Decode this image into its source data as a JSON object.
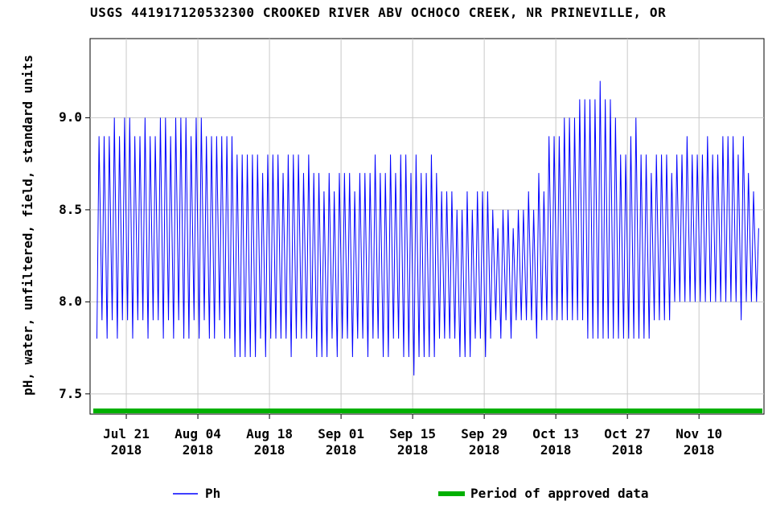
{
  "chart_data": {
    "type": "line",
    "title": "USGS 441917120532300 CROOKED RIVER ABV OCHOCO CREEK, NR PRINEVILLE, OR",
    "y_label": "pH, water, unfiltered, field, standard units",
    "xlim": [
      "2018-07-13T22:00",
      "2018-11-22T17:00"
    ],
    "ylim": [
      7.39,
      9.43
    ],
    "yticks": [
      {
        "value": 7.5,
        "label": "7.5"
      },
      {
        "value": 8,
        "label": "8.0"
      },
      {
        "value": 8.5,
        "label": "8.5"
      },
      {
        "value": 9,
        "label": "9.0"
      }
    ],
    "xticks": [
      {
        "value": "2018-07-21T00:00",
        "label": "Jul 21 2018"
      },
      {
        "value": "2018-08-04T00:00",
        "label": "Aug 04 2018"
      },
      {
        "value": "2018-08-18T00:00",
        "label": "Aug 18 2018"
      },
      {
        "value": "2018-09-01T00:00",
        "label": "Sep 01 2018"
      },
      {
        "value": "2018-09-15T00:00",
        "label": "Sep 15 2018"
      },
      {
        "value": "2018-09-29T00:00",
        "label": "Sep 29 2018"
      },
      {
        "value": "2018-10-13T00:00",
        "label": "Oct 13 2018"
      },
      {
        "value": "2018-10-27T00:00",
        "label": "Oct 27 2018"
      },
      {
        "value": "2018-11-10T00:00",
        "label": "Nov 10 2018"
      }
    ],
    "grid": true,
    "approved": {
      "name": "Period of approved data",
      "color": "#00b000"
    },
    "x": [
      "2018-07-15T06:00",
      "2018-07-15T16:00",
      "2018-07-16T06:00",
      "2018-07-16T16:00",
      "2018-07-17T06:00",
      "2018-07-17T16:00",
      "2018-07-18T06:00",
      "2018-07-18T16:00",
      "2018-07-19T06:00",
      "2018-07-19T16:00",
      "2018-07-20T06:00",
      "2018-07-20T16:00",
      "2018-07-21T06:00",
      "2018-07-21T16:00",
      "2018-07-22T06:00",
      "2018-07-22T16:00",
      "2018-07-23T06:00",
      "2018-07-23T16:00",
      "2018-07-24T06:00",
      "2018-07-24T16:00",
      "2018-07-25T06:00",
      "2018-07-25T16:00",
      "2018-07-26T06:00",
      "2018-07-26T16:00",
      "2018-07-27T06:00",
      "2018-07-27T16:00",
      "2018-07-28T06:00",
      "2018-07-28T16:00",
      "2018-07-29T06:00",
      "2018-07-29T16:00",
      "2018-07-30T06:00",
      "2018-07-30T16:00",
      "2018-07-31T06:00",
      "2018-07-31T16:00",
      "2018-08-01T06:00",
      "2018-08-01T16:00",
      "2018-08-02T06:00",
      "2018-08-02T16:00",
      "2018-08-03T06:00",
      "2018-08-03T16:00",
      "2018-08-04T06:00",
      "2018-08-04T16:00",
      "2018-08-05T06:00",
      "2018-08-05T16:00",
      "2018-08-06T06:00",
      "2018-08-06T16:00",
      "2018-08-07T06:00",
      "2018-08-07T16:00",
      "2018-08-08T06:00",
      "2018-08-08T16:00",
      "2018-08-09T06:00",
      "2018-08-09T16:00",
      "2018-08-10T06:00",
      "2018-08-10T16:00",
      "2018-08-11T06:00",
      "2018-08-11T16:00",
      "2018-08-12T06:00",
      "2018-08-12T16:00",
      "2018-08-13T06:00",
      "2018-08-13T16:00",
      "2018-08-14T06:00",
      "2018-08-14T16:00",
      "2018-08-15T06:00",
      "2018-08-15T16:00",
      "2018-08-16T06:00",
      "2018-08-16T16:00",
      "2018-08-17T06:00",
      "2018-08-17T16:00",
      "2018-08-18T06:00",
      "2018-08-18T16:00",
      "2018-08-19T06:00",
      "2018-08-19T16:00",
      "2018-08-20T06:00",
      "2018-08-20T16:00",
      "2018-08-21T06:00",
      "2018-08-21T16:00",
      "2018-08-22T06:00",
      "2018-08-22T16:00",
      "2018-08-23T06:00",
      "2018-08-23T16:00",
      "2018-08-24T06:00",
      "2018-08-24T16:00",
      "2018-08-25T06:00",
      "2018-08-25T16:00",
      "2018-08-26T06:00",
      "2018-08-26T16:00",
      "2018-08-27T06:00",
      "2018-08-27T16:00",
      "2018-08-28T06:00",
      "2018-08-28T16:00",
      "2018-08-29T06:00",
      "2018-08-29T16:00",
      "2018-08-30T06:00",
      "2018-08-30T16:00",
      "2018-08-31T06:00",
      "2018-08-31T16:00",
      "2018-09-01T06:00",
      "2018-09-01T16:00",
      "2018-09-02T06:00",
      "2018-09-02T16:00",
      "2018-09-03T06:00",
      "2018-09-03T16:00",
      "2018-09-04T06:00",
      "2018-09-04T16:00",
      "2018-09-05T06:00",
      "2018-09-05T16:00",
      "2018-09-06T06:00",
      "2018-09-06T16:00",
      "2018-09-07T06:00",
      "2018-09-07T16:00",
      "2018-09-08T06:00",
      "2018-09-08T16:00",
      "2018-09-09T06:00",
      "2018-09-09T16:00",
      "2018-09-10T06:00",
      "2018-09-10T16:00",
      "2018-09-11T06:00",
      "2018-09-11T16:00",
      "2018-09-12T06:00",
      "2018-09-12T16:00",
      "2018-09-13T06:00",
      "2018-09-13T16:00",
      "2018-09-14T06:00",
      "2018-09-14T16:00",
      "2018-09-15T06:00",
      "2018-09-15T16:00",
      "2018-09-16T06:00",
      "2018-09-16T16:00",
      "2018-09-17T06:00",
      "2018-09-17T16:00",
      "2018-09-18T06:00",
      "2018-09-18T16:00",
      "2018-09-19T06:00",
      "2018-09-19T16:00",
      "2018-09-20T06:00",
      "2018-09-20T16:00",
      "2018-09-21T06:00",
      "2018-09-21T16:00",
      "2018-09-22T06:00",
      "2018-09-22T16:00",
      "2018-09-23T06:00",
      "2018-09-23T16:00",
      "2018-09-24T06:00",
      "2018-09-24T16:00",
      "2018-09-25T06:00",
      "2018-09-25T16:00",
      "2018-09-26T06:00",
      "2018-09-26T16:00",
      "2018-09-27T06:00",
      "2018-09-27T16:00",
      "2018-09-28T06:00",
      "2018-09-28T16:00",
      "2018-09-29T06:00",
      "2018-09-29T16:00",
      "2018-09-30T06:00",
      "2018-09-30T16:00",
      "2018-10-01T06:00",
      "2018-10-01T16:00",
      "2018-10-02T06:00",
      "2018-10-02T16:00",
      "2018-10-03T06:00",
      "2018-10-03T16:00",
      "2018-10-04T06:00",
      "2018-10-04T16:00",
      "2018-10-05T06:00",
      "2018-10-05T16:00",
      "2018-10-06T06:00",
      "2018-10-06T16:00",
      "2018-10-07T06:00",
      "2018-10-07T16:00",
      "2018-10-08T06:00",
      "2018-10-08T16:00",
      "2018-10-09T06:00",
      "2018-10-09T16:00",
      "2018-10-10T06:00",
      "2018-10-10T16:00",
      "2018-10-11T06:00",
      "2018-10-11T16:00",
      "2018-10-12T06:00",
      "2018-10-12T16:00",
      "2018-10-13T06:00",
      "2018-10-13T16:00",
      "2018-10-14T06:00",
      "2018-10-14T16:00",
      "2018-10-15T06:00",
      "2018-10-15T16:00",
      "2018-10-16T06:00",
      "2018-10-16T16:00",
      "2018-10-17T06:00",
      "2018-10-17T16:00",
      "2018-10-18T06:00",
      "2018-10-18T16:00",
      "2018-10-19T06:00",
      "2018-10-19T16:00",
      "2018-10-20T06:00",
      "2018-10-20T16:00",
      "2018-10-21T06:00",
      "2018-10-21T16:00",
      "2018-10-22T06:00",
      "2018-10-22T16:00",
      "2018-10-23T06:00",
      "2018-10-23T16:00",
      "2018-10-24T06:00",
      "2018-10-24T16:00",
      "2018-10-25T06:00",
      "2018-10-25T16:00",
      "2018-10-26T06:00",
      "2018-10-26T16:00",
      "2018-10-27T06:00",
      "2018-10-27T16:00",
      "2018-10-28T06:00",
      "2018-10-28T16:00",
      "2018-10-29T06:00",
      "2018-10-29T16:00",
      "2018-10-30T06:00",
      "2018-10-30T16:00",
      "2018-10-31T06:00",
      "2018-10-31T16:00",
      "2018-11-01T06:00",
      "2018-11-01T16:00",
      "2018-11-02T06:00",
      "2018-11-02T16:00",
      "2018-11-03T06:00",
      "2018-11-03T16:00",
      "2018-11-04T06:00",
      "2018-11-04T16:00",
      "2018-11-05T06:00",
      "2018-11-05T16:00",
      "2018-11-06T06:00",
      "2018-11-06T16:00",
      "2018-11-07T06:00",
      "2018-11-07T16:00",
      "2018-11-08T06:00",
      "2018-11-08T16:00",
      "2018-11-09T06:00",
      "2018-11-09T16:00",
      "2018-11-10T06:00",
      "2018-11-10T16:00",
      "2018-11-11T06:00",
      "2018-11-11T16:00",
      "2018-11-12T06:00",
      "2018-11-12T16:00",
      "2018-11-13T06:00",
      "2018-11-13T16:00",
      "2018-11-14T06:00",
      "2018-11-14T16:00",
      "2018-11-15T06:00",
      "2018-11-15T16:00",
      "2018-11-16T06:00",
      "2018-11-16T16:00",
      "2018-11-17T06:00",
      "2018-11-17T16:00",
      "2018-11-18T06:00",
      "2018-11-18T16:00",
      "2018-11-19T06:00",
      "2018-11-19T16:00",
      "2018-11-20T06:00",
      "2018-11-20T16:00",
      "2018-11-21T06:00",
      "2018-11-21T16:00"
    ],
    "series": [
      {
        "name": "Ph",
        "color": "#0000ff",
        "values": [
          7.8,
          8.9,
          7.9,
          8.9,
          7.8,
          8.9,
          7.9,
          9.0,
          7.8,
          8.9,
          7.9,
          9.0,
          7.9,
          9.0,
          7.8,
          8.9,
          7.9,
          8.9,
          7.9,
          9.0,
          7.8,
          8.9,
          7.9,
          8.9,
          7.9,
          9.0,
          7.8,
          9.0,
          7.9,
          8.9,
          7.8,
          9.0,
          7.9,
          9.0,
          7.8,
          9.0,
          7.8,
          8.9,
          7.9,
          9.0,
          7.8,
          9.0,
          7.9,
          8.9,
          7.8,
          8.9,
          7.8,
          8.9,
          7.9,
          8.9,
          7.8,
          8.9,
          7.8,
          8.9,
          7.7,
          8.8,
          7.7,
          8.8,
          7.7,
          8.8,
          7.7,
          8.8,
          7.7,
          8.8,
          7.8,
          8.7,
          7.7,
          8.8,
          7.8,
          8.8,
          7.8,
          8.8,
          7.8,
          8.7,
          7.8,
          8.8,
          7.7,
          8.8,
          7.8,
          8.8,
          7.8,
          8.7,
          7.8,
          8.8,
          7.8,
          8.7,
          7.7,
          8.7,
          7.7,
          8.6,
          7.7,
          8.7,
          7.8,
          8.6,
          7.7,
          8.7,
          7.8,
          8.7,
          7.8,
          8.7,
          7.7,
          8.6,
          7.8,
          8.7,
          7.8,
          8.7,
          7.7,
          8.7,
          7.8,
          8.8,
          7.8,
          8.7,
          7.7,
          8.7,
          7.7,
          8.8,
          7.8,
          8.7,
          7.8,
          8.8,
          7.7,
          8.8,
          7.7,
          8.7,
          7.6,
          8.8,
          7.7,
          8.7,
          7.7,
          8.7,
          7.7,
          8.8,
          7.7,
          8.7,
          7.8,
          8.6,
          7.8,
          8.6,
          7.8,
          8.6,
          7.8,
          8.5,
          7.7,
          8.5,
          7.7,
          8.6,
          7.7,
          8.5,
          7.8,
          8.6,
          7.8,
          8.6,
          7.7,
          8.6,
          7.8,
          8.5,
          7.9,
          8.4,
          7.8,
          8.5,
          7.9,
          8.5,
          7.8,
          8.4,
          7.9,
          8.5,
          7.9,
          8.5,
          7.9,
          8.6,
          7.9,
          8.5,
          7.8,
          8.7,
          7.9,
          8.6,
          7.9,
          8.9,
          7.9,
          8.9,
          7.9,
          8.9,
          7.9,
          9.0,
          7.9,
          9.0,
          7.9,
          9.0,
          7.9,
          9.1,
          7.9,
          9.1,
          7.8,
          9.1,
          7.8,
          9.1,
          7.8,
          9.2,
          7.8,
          9.1,
          7.8,
          9.1,
          7.8,
          9.0,
          7.8,
          8.8,
          7.8,
          8.8,
          7.8,
          8.9,
          7.8,
          9.0,
          7.8,
          8.8,
          7.8,
          8.8,
          7.8,
          8.7,
          7.9,
          8.8,
          7.9,
          8.8,
          7.9,
          8.8,
          7.9,
          8.7,
          8.0,
          8.8,
          8.0,
          8.8,
          8.0,
          8.9,
          8.0,
          8.8,
          8.0,
          8.8,
          8.0,
          8.8,
          8.0,
          8.9,
          8.0,
          8.8,
          8.0,
          8.8,
          8.0,
          8.9,
          8.0,
          8.9,
          8.0,
          8.9,
          8.0,
          8.8,
          7.9,
          8.9,
          8.0,
          8.7,
          8.0,
          8.6,
          8.0,
          8.4
        ]
      }
    ]
  }
}
